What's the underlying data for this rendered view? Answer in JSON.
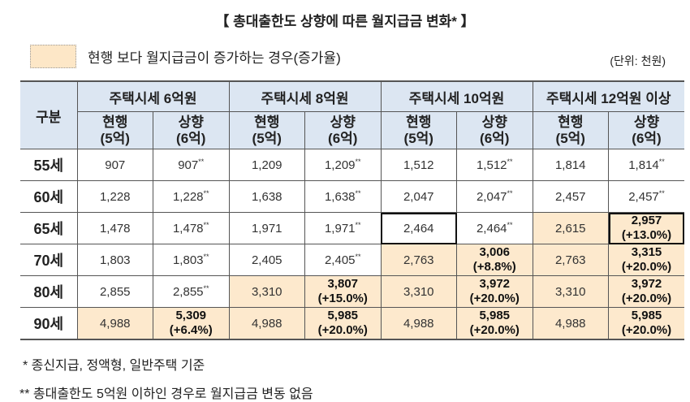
{
  "title": "【 총대출한도 상향에 따른 월지급금 변화* 】",
  "legend": {
    "label": "현행 보다 월지급금이 증가하는 경우(증가율)",
    "color": "#fde9cd"
  },
  "unit": "(단위: 천원)",
  "header": {
    "corner": "구분",
    "groups": [
      "주택시세 6억원",
      "주택시세 8억원",
      "주택시세 10억원",
      "주택시세 12억원 이상"
    ],
    "sub": [
      {
        "l1": "현행",
        "l2": "(5억)"
      },
      {
        "l1": "상향",
        "l2": "(6억)"
      },
      {
        "l1": "현행",
        "l2": "(5억)"
      },
      {
        "l1": "상향",
        "l2": "(6억)"
      },
      {
        "l1": "현행",
        "l2": "(5억)"
      },
      {
        "l1": "상향",
        "l2": "(6억)"
      },
      {
        "l1": "현행",
        "l2": "(5억)"
      },
      {
        "l1": "상향",
        "l2": "(6억)"
      }
    ]
  },
  "rows": [
    {
      "age": "55세",
      "cells": [
        {
          "v": "907"
        },
        {
          "v": "907",
          "sup": "**"
        },
        {
          "v": "1,209"
        },
        {
          "v": "1,209",
          "sup": "**"
        },
        {
          "v": "1,512"
        },
        {
          "v": "1,512",
          "sup": "**"
        },
        {
          "v": "1,814"
        },
        {
          "v": "1,814",
          "sup": "**"
        }
      ]
    },
    {
      "age": "60세",
      "cells": [
        {
          "v": "1,228"
        },
        {
          "v": "1,228",
          "sup": "**"
        },
        {
          "v": "1,638"
        },
        {
          "v": "1,638",
          "sup": "**"
        },
        {
          "v": "2,047"
        },
        {
          "v": "2,047",
          "sup": "**"
        },
        {
          "v": "2,457"
        },
        {
          "v": "2,457",
          "sup": "**"
        }
      ]
    },
    {
      "age": "65세",
      "cells": [
        {
          "v": "1,478"
        },
        {
          "v": "1,478",
          "sup": "**"
        },
        {
          "v": "1,971"
        },
        {
          "v": "1,971",
          "sup": "**"
        },
        {
          "v": "2,464",
          "boxed": true
        },
        {
          "v": "2,464",
          "sup": "**"
        },
        {
          "v": "2,615",
          "hl": true
        },
        {
          "v": "2,957",
          "pct": "(+13.0%)",
          "hl": true,
          "boxed": true
        }
      ]
    },
    {
      "age": "70세",
      "cells": [
        {
          "v": "1,803"
        },
        {
          "v": "1,803",
          "sup": "**"
        },
        {
          "v": "2,405"
        },
        {
          "v": "2,405",
          "sup": "**"
        },
        {
          "v": "2,763",
          "hl": true
        },
        {
          "v": "3,006",
          "pct": "(+8.8%)",
          "hl": true
        },
        {
          "v": "2,763",
          "hl": true
        },
        {
          "v": "3,315",
          "pct": "(+20.0%)",
          "hl": true
        }
      ]
    },
    {
      "age": "80세",
      "cells": [
        {
          "v": "2,855"
        },
        {
          "v": "2,855",
          "sup": "**"
        },
        {
          "v": "3,310",
          "hl": true
        },
        {
          "v": "3,807",
          "pct": "(+15.0%)",
          "hl": true
        },
        {
          "v": "3,310",
          "hl": true
        },
        {
          "v": "3,972",
          "pct": "(+20.0%)",
          "hl": true
        },
        {
          "v": "3,310",
          "hl": true
        },
        {
          "v": "3,972",
          "pct": "(+20.0%)",
          "hl": true
        }
      ]
    },
    {
      "age": "90세",
      "cells": [
        {
          "v": "4,988",
          "hl": true
        },
        {
          "v": "5,309",
          "pct": "(+6.4%)",
          "hl": true
        },
        {
          "v": "4,988",
          "hl": true
        },
        {
          "v": "5,985",
          "pct": "(+20.0%)",
          "hl": true
        },
        {
          "v": "4,988",
          "hl": true
        },
        {
          "v": "5,985",
          "pct": "(+20.0%)",
          "hl": true
        },
        {
          "v": "4,988",
          "hl": true
        },
        {
          "v": "5,985",
          "pct": "(+20.0%)",
          "hl": true
        }
      ]
    }
  ],
  "notes": [
    "* 종신지급, 정액형, 일반주택 기준",
    "** 총대출한도 5억원 이하인 경우로 월지급금 변동 없음"
  ]
}
